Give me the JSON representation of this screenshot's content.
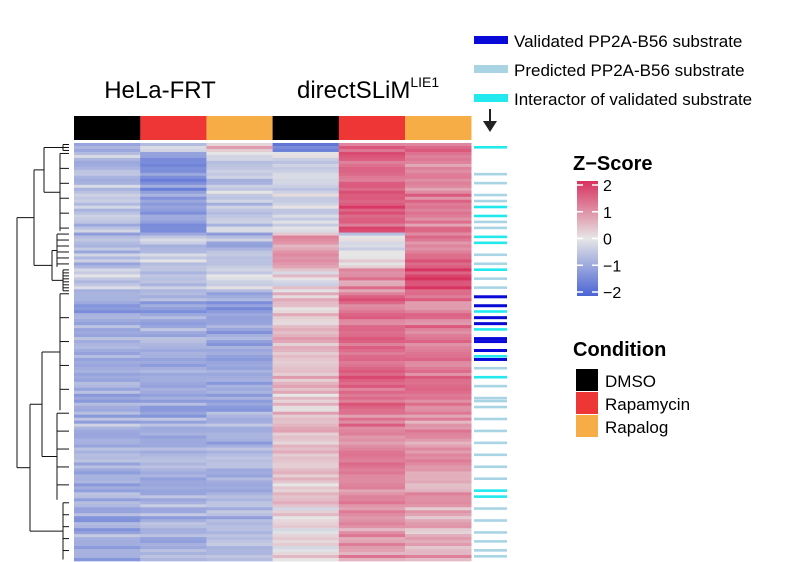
{
  "chart_data": {
    "type": "heatmap",
    "groups": [
      {
        "name": "HeLa-FRT",
        "superscript": ""
      },
      {
        "name": "directSLiM",
        "superscript": "LIE1"
      }
    ],
    "columns": [
      {
        "group": "HeLa-FRT",
        "condition": "DMSO"
      },
      {
        "group": "HeLa-FRT",
        "condition": "Rapamycin"
      },
      {
        "group": "HeLa-FRT",
        "condition": "Rapalog"
      },
      {
        "group": "directSLiM LIE1",
        "condition": "DMSO"
      },
      {
        "group": "directSLiM LIE1",
        "condition": "Rapamycin"
      },
      {
        "group": "directSLiM LIE1",
        "condition": "Rapalog"
      }
    ],
    "row_count": 140,
    "clusters": [
      {
        "rows": 3,
        "mean_z": [
          -1.0,
          -0.3,
          0.6,
          -1.6,
          1.3,
          1.4
        ]
      },
      {
        "rows": 27,
        "mean_z": [
          -0.6,
          -1.2,
          -0.4,
          -0.3,
          1.5,
          1.1
        ]
      },
      {
        "rows": 12,
        "mean_z": [
          -0.7,
          -0.5,
          -0.7,
          0.8,
          -0.1,
          1.2
        ]
      },
      {
        "rows": 8,
        "mean_z": [
          -0.4,
          -0.6,
          -0.3,
          0.1,
          1.0,
          1.7
        ]
      },
      {
        "rows": 40,
        "mean_z": [
          -0.9,
          -0.9,
          -1.0,
          0.4,
          1.3,
          1.2
        ]
      },
      {
        "rows": 30,
        "mean_z": [
          -0.8,
          -0.8,
          -0.8,
          0.5,
          1.1,
          0.9
        ]
      },
      {
        "rows": 20,
        "mean_z": [
          -0.8,
          -0.7,
          -0.6,
          0.2,
          1.0,
          0.7
        ]
      }
    ],
    "color_scale": {
      "title": "Z−Score",
      "min": -2,
      "max": 2,
      "ticks": [
        "2",
        "1",
        "0",
        "−1",
        "−2"
      ],
      "tick_values": [
        2,
        1,
        0,
        -1,
        -2
      ],
      "low_color": "#4a64d4",
      "mid_color": "#e6e6e6",
      "high_color": "#d8325f"
    },
    "condition_legend": {
      "title": "Condition",
      "items": [
        {
          "label": "DMSO",
          "color": "#000000"
        },
        {
          "label": "Rapamycin",
          "color": "#ee3636"
        },
        {
          "label": "Rapalog",
          "color": "#f7ad45"
        }
      ]
    },
    "annotation_legend": {
      "items": [
        {
          "label": "Validated PP2A-B56 substrate",
          "color": "#0a0ad8",
          "key": "validated"
        },
        {
          "label": "Predicted PP2A-B56 substrate",
          "color": "#a9d4e4",
          "key": "predicted"
        },
        {
          "label": "Interactor of validated substrate",
          "color": "#22e9ee",
          "key": "interactor"
        }
      ]
    },
    "annotations": [
      {
        "row": 1,
        "type": "interactor"
      },
      {
        "row": 10,
        "type": "predicted"
      },
      {
        "row": 13,
        "type": "predicted"
      },
      {
        "row": 17,
        "type": "predicted"
      },
      {
        "row": 19,
        "type": "predicted"
      },
      {
        "row": 21,
        "type": "interactor"
      },
      {
        "row": 24,
        "type": "interactor"
      },
      {
        "row": 26,
        "type": "predicted"
      },
      {
        "row": 28,
        "type": "predicted"
      },
      {
        "row": 31,
        "type": "interactor"
      },
      {
        "row": 33,
        "type": "interactor"
      },
      {
        "row": 37,
        "type": "predicted"
      },
      {
        "row": 40,
        "type": "predicted"
      },
      {
        "row": 42,
        "type": "interactor"
      },
      {
        "row": 45,
        "type": "predicted"
      },
      {
        "row": 48,
        "type": "predicted"
      },
      {
        "row": 51,
        "type": "validated"
      },
      {
        "row": 54,
        "type": "validated"
      },
      {
        "row": 56,
        "type": "interactor"
      },
      {
        "row": 58,
        "type": "validated"
      },
      {
        "row": 60,
        "type": "validated"
      },
      {
        "row": 62,
        "type": "interactor"
      },
      {
        "row": 65,
        "type": "validated"
      },
      {
        "row": 66,
        "type": "validated"
      },
      {
        "row": 69,
        "type": "validated"
      },
      {
        "row": 71,
        "type": "interactor"
      },
      {
        "row": 72,
        "type": "validated"
      },
      {
        "row": 75,
        "type": "predicted"
      },
      {
        "row": 78,
        "type": "interactor"
      },
      {
        "row": 81,
        "type": "predicted"
      },
      {
        "row": 85,
        "type": "predicted"
      },
      {
        "row": 86,
        "type": "predicted"
      },
      {
        "row": 88,
        "type": "predicted"
      },
      {
        "row": 92,
        "type": "predicted"
      },
      {
        "row": 96,
        "type": "predicted"
      },
      {
        "row": 100,
        "type": "predicted"
      },
      {
        "row": 104,
        "type": "predicted"
      },
      {
        "row": 108,
        "type": "predicted"
      },
      {
        "row": 112,
        "type": "predicted"
      },
      {
        "row": 116,
        "type": "interactor"
      },
      {
        "row": 118,
        "type": "interactor"
      },
      {
        "row": 122,
        "type": "predicted"
      },
      {
        "row": 126,
        "type": "predicted"
      },
      {
        "row": 130,
        "type": "predicted"
      },
      {
        "row": 133,
        "type": "predicted"
      },
      {
        "row": 136,
        "type": "predicted"
      },
      {
        "row": 138,
        "type": "predicted"
      }
    ]
  }
}
